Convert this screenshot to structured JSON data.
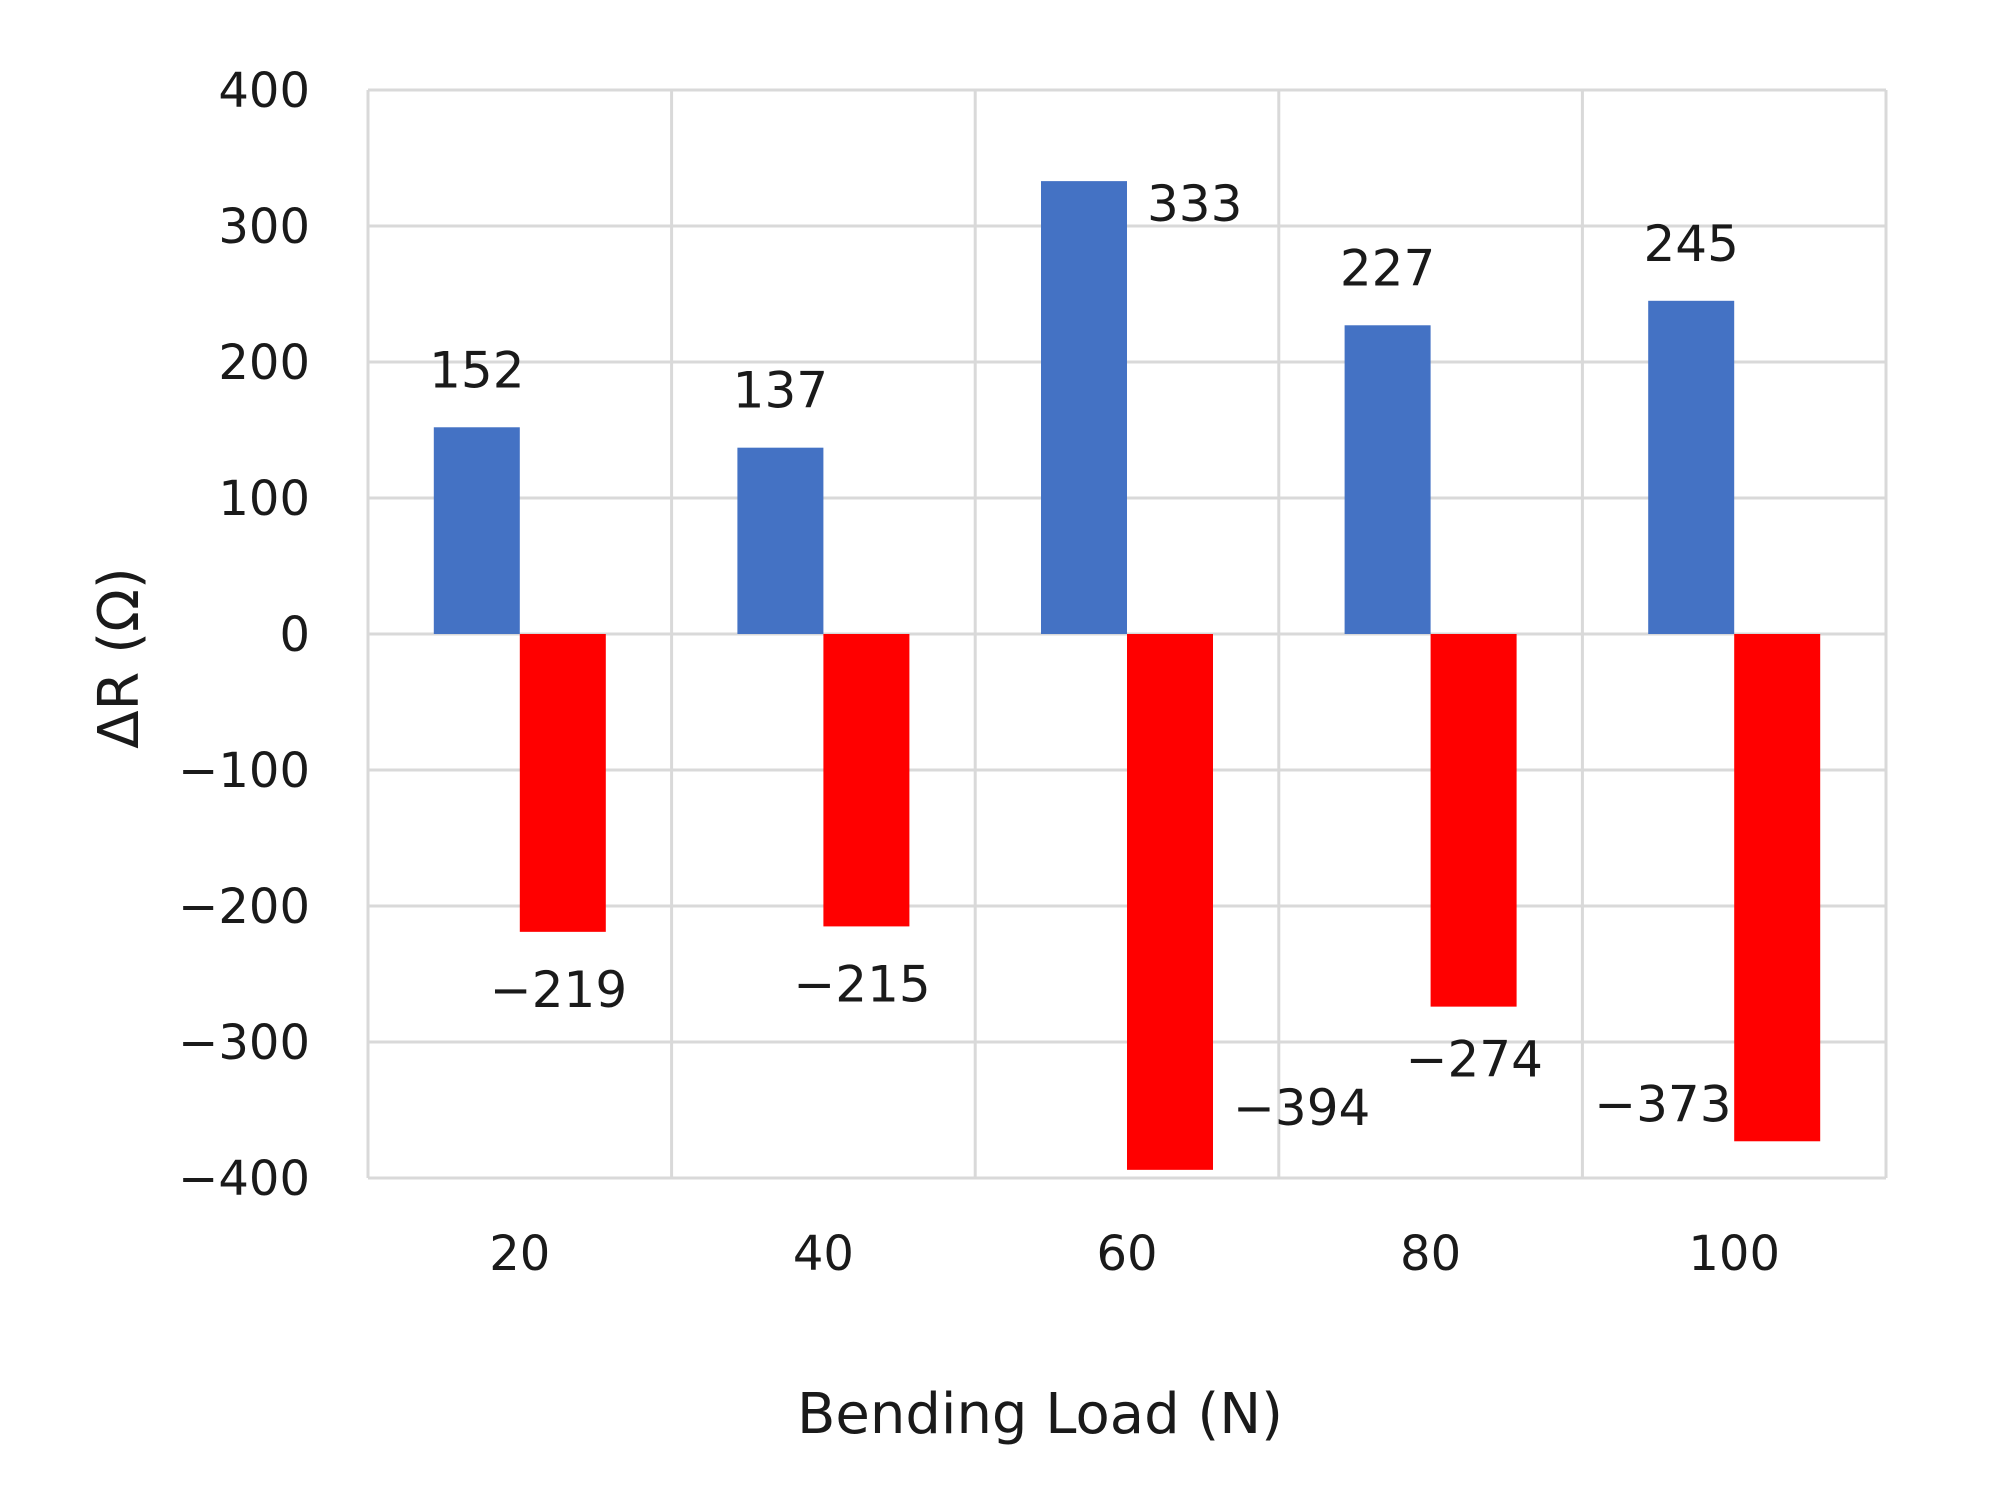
{
  "chart_data": {
    "type": "bar",
    "title": "",
    "xlabel": "Bending Load (N)",
    "ylabel": "ΔR (Ω)",
    "categories": [
      "20",
      "40",
      "60",
      "80",
      "100"
    ],
    "series": [
      {
        "values": [
          152,
          137,
          333,
          227,
          245
        ],
        "color": "#4472c4"
      },
      {
        "values": [
          -219,
          -215,
          -394,
          -274,
          -373
        ],
        "color": "#ff0000"
      }
    ],
    "data_labels": [
      [
        "152",
        "137",
        "333",
        "227",
        "245"
      ],
      [
        "−219",
        "−215",
        "−394",
        "−274",
        "−373"
      ]
    ],
    "ylim": [
      -400,
      400
    ],
    "y_tick_labels": [
      "400",
      "300",
      "200",
      "100",
      "0",
      "−100",
      "−200",
      "−300",
      "−400"
    ],
    "y_ticks": [
      400,
      300,
      200,
      100,
      0,
      -100,
      -200,
      -300,
      -400
    ],
    "grid": true,
    "legend": "none",
    "gridline_color": "#d9d9d9"
  }
}
